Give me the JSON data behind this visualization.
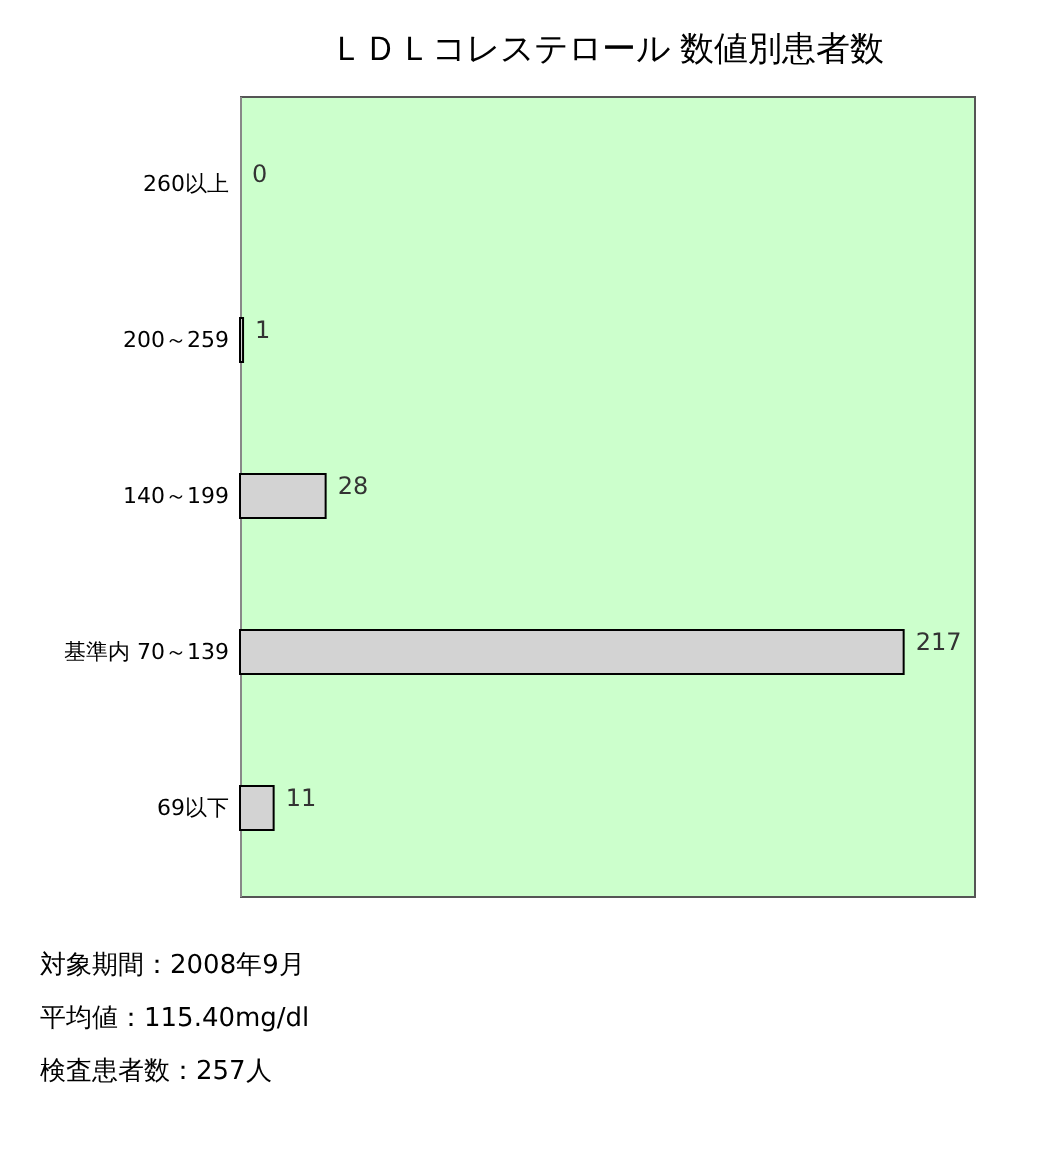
{
  "chart_data": {
    "type": "bar",
    "orientation": "horizontal",
    "title": "ＬＤＬコレステロール 数値別患者数",
    "categories": [
      "260以上",
      "200～259",
      "140～199",
      "基準内 70～139",
      "69以下"
    ],
    "values": [
      0,
      1,
      28,
      217,
      11
    ],
    "color": "#d3d3d3",
    "xlim": [
      0,
      240
    ],
    "data_labels": true,
    "tick_labels": "y",
    "grid": false,
    "annotations": [
      "対象期間：2008年9月",
      "平均値：115.40mg/dl",
      "検査患者数：257人"
    ]
  }
}
